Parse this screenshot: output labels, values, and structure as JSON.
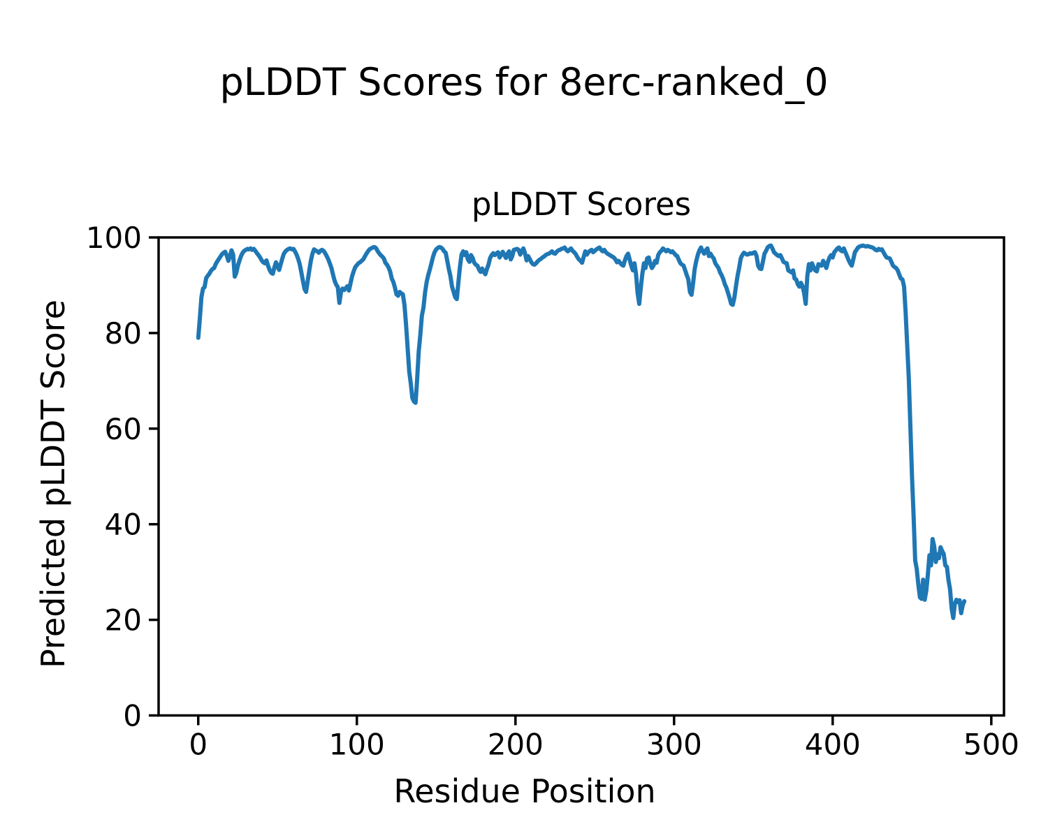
{
  "figure": {
    "suptitle": "pLDDT Scores for 8erc-ranked_0",
    "background_color": "#ffffff",
    "text_color": "#000000"
  },
  "chart_data": {
    "type": "line",
    "title": "pLDDT Scores",
    "xlabel": "Residue Position",
    "ylabel": "Predicted pLDDT Score",
    "xlim": [
      -25,
      508
    ],
    "ylim": [
      0,
      100
    ],
    "xticks": [
      0,
      100,
      200,
      300,
      400,
      500
    ],
    "yticks": [
      0,
      20,
      40,
      60,
      80,
      100
    ],
    "grid": false,
    "legend": "none",
    "line_color": "#1f77b4",
    "line_width": 6,
    "series": [
      {
        "name": "pLDDT",
        "x_start": 0,
        "x_step": 1,
        "y": [
          79,
          83,
          87.5,
          89.3,
          89.6,
          91.5,
          92,
          92.4,
          93,
          93.4,
          93.6,
          94.4,
          95,
          95.5,
          96,
          96.5,
          96.8,
          97,
          96.2,
          95.1,
          96.1,
          97.3,
          96.4,
          91.8,
          92.6,
          94.1,
          95.2,
          96.1,
          96.8,
          97.2,
          97.4,
          97.6,
          97.5,
          97.7,
          97.4,
          97.6,
          97.2,
          96.7,
          96.3,
          95.8,
          95.2,
          94.8,
          94.6,
          95.2,
          94.1,
          93.2,
          92.6,
          92.4,
          93.7,
          94.8,
          93.9,
          93.2,
          94.4,
          95.6,
          96.6,
          97.1,
          97.4,
          97.6,
          97.7,
          97.5,
          97.6,
          97.1,
          96.4,
          95.5,
          94.4,
          92.7,
          90.9,
          89.2,
          88.6,
          90.9,
          93.1,
          95.1,
          96.6,
          97.5,
          97.3,
          97.1,
          96.8,
          97.2,
          97.4,
          97.2,
          96.7,
          96.1,
          95.4,
          94.5,
          93.6,
          92.2,
          90.9,
          90.1,
          89.6,
          86.3,
          88.6,
          89.3,
          89,
          89.4,
          89.8,
          88.9,
          90.4,
          91.9,
          92.9,
          93.8,
          94.2,
          94.6,
          94.8,
          95.1,
          95.4,
          96,
          96.6,
          97.1,
          97.5,
          97.7,
          97.9,
          98,
          97.8,
          97.2,
          96.7,
          96.3,
          96,
          95.6,
          94.7,
          94.3,
          93.7,
          92.9,
          91.4,
          90.7,
          89.5,
          88.1,
          87.8,
          88.6,
          88.3,
          88.1,
          85.9,
          81.9,
          77,
          72,
          69.4,
          66.4,
          65.7,
          65.4,
          70.2,
          76.1,
          79.6,
          83.6,
          85.3,
          88.5,
          90.7,
          92.1,
          93.3,
          94.6,
          95.9,
          96.9,
          97.5,
          97.8,
          98,
          97.9,
          97.6,
          97.1,
          96.8,
          95.1,
          93.4,
          91.9,
          89.7,
          88.6,
          87.5,
          87.1,
          90.6,
          93.8,
          96.4,
          97.1,
          96.3,
          96.9,
          95.4,
          94.9,
          96.3,
          95.7,
          94.7,
          94.3,
          94.1,
          93.3,
          92.8,
          93.5,
          92.8,
          92.3,
          93.4,
          94.3,
          95.7,
          96.3,
          96.7,
          96.3,
          96.6,
          96.9,
          95.8,
          96.4,
          97,
          96.3,
          95.7,
          96.6,
          97.1,
          95.4,
          96.1,
          97.4,
          97.5,
          97.6,
          97.4,
          96.4,
          97.1,
          97.7,
          96.7,
          95.2,
          96.1,
          95.5,
          94.8,
          94.4,
          94.3,
          94.6,
          95,
          95.3,
          95.5,
          95.8,
          96,
          96.3,
          96.5,
          96.6,
          96.8,
          97.1,
          96.7,
          96.6,
          97,
          97.3,
          97.4,
          97.6,
          97.7,
          97.9,
          97.4,
          97.1,
          97.4,
          97.7,
          97.2,
          96.9,
          96.5,
          95.9,
          95.4,
          95.1,
          94.7,
          95.9,
          97.1,
          96.4,
          96.9,
          97.2,
          97.4,
          96.9,
          97.2,
          97.5,
          97.7,
          97.9,
          97.4,
          97.1,
          97.4,
          96.9,
          96.6,
          96.4,
          96.2,
          96,
          95.8,
          95.4,
          94.8,
          95.1,
          94.7,
          94.3,
          94.1,
          95.2,
          96.1,
          96.6,
          95.4,
          94.1,
          93.1,
          94.6,
          92.4,
          88.4,
          86.1,
          89.4,
          92.4,
          94.6,
          93.6,
          95.6,
          95.8,
          94.5,
          93.6,
          94.1,
          95.1,
          94.7,
          96.3,
          96.9,
          97.2,
          97.7,
          97.4,
          97.1,
          97.4,
          97.2,
          96.9,
          97.1,
          96.7,
          96.3,
          96.1,
          95.3,
          94.6,
          94.3,
          94.1,
          93.1,
          92.1,
          91.2,
          88.6,
          88,
          90.4,
          93.4,
          95.1,
          96.4,
          97.3,
          97.9,
          97.1,
          96.6,
          97.3,
          97.7,
          96.1,
          96.6,
          96,
          95.6,
          94.6,
          94.1,
          93.6,
          92.7,
          92.1,
          91.3,
          90.2,
          89.5,
          88.4,
          87.3,
          86.1,
          85.9,
          87.4,
          89.7,
          91.9,
          93.6,
          95.6,
          96.3,
          96.8,
          96.6,
          96.4,
          96.5,
          96.7,
          96.6,
          96.8,
          96.9,
          96.1,
          94.1,
          93.5,
          93.4,
          94.9,
          96.6,
          97.2,
          97.9,
          98.2,
          98.3,
          97.7,
          96.9,
          96.6,
          96.3,
          96.1,
          96.3,
          95.6,
          94.9,
          94.7,
          94.6,
          93.1,
          92.9,
          92.7,
          93.1,
          91.4,
          91.2,
          90.2,
          89.7,
          90.5,
          89.8,
          88.3,
          86.1,
          91.9,
          94.4,
          93.1,
          94.6,
          93.7,
          93.1,
          92.9,
          94.4,
          94.2,
          94.1,
          95.1,
          94.4,
          93.6,
          94.9,
          95.8,
          96.3,
          95.8,
          96.9,
          97.3,
          97.7,
          97.9,
          97.3,
          97.1,
          97.7,
          96.9,
          96.1,
          95.3,
          94.6,
          94.1,
          95.4,
          96.9,
          97.4,
          97.9,
          98.1,
          98.2,
          98.3,
          98.2,
          98.1,
          98.2,
          98.1,
          98,
          97.9,
          97.7,
          97.4,
          97.3,
          97.6,
          97.4,
          97.5,
          96.9,
          96.3,
          95.8,
          95.7,
          95.6,
          94.9,
          94.1,
          93.8,
          93.6,
          93.1,
          92.2,
          91.4,
          91.2,
          89.7,
          84.4,
          77.4,
          70.4,
          60.1,
          50.2,
          41.9,
          32.4,
          30.7,
          27.4,
          24.7,
          24.4,
          28.4,
          24.2,
          26.1,
          29.4,
          33.5,
          31.4,
          36.9,
          35.4,
          32.1,
          33.7,
          32.9,
          35.2,
          34.4,
          33.8,
          31.4,
          31.1,
          28.4,
          26.4,
          22.4,
          20.4,
          23.3,
          24.2,
          23.7,
          24.1,
          21.4,
          23.1,
          23.9
        ]
      }
    ]
  }
}
